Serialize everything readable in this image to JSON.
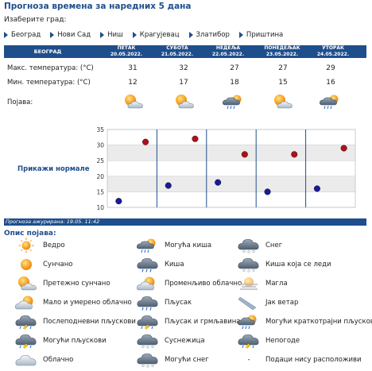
{
  "title": "Прогноза времена за наредних 5 дана",
  "choose_city": "Изаберите град:",
  "cities": [
    "Београд",
    "Нови Сад",
    "Ниш",
    "Крагујевац",
    "Златибор",
    "Приштина"
  ],
  "table": {
    "header_first": "БЕОГРАД",
    "days": [
      {
        "name": "ПЕТАК",
        "date": "20.05.2022.",
        "max": "31",
        "min": "12",
        "icon": "sunny-cloud-icon"
      },
      {
        "name": "СУБОТА",
        "date": "21.05.2022.",
        "max": "32",
        "min": "17",
        "icon": "sunny-cloud-icon"
      },
      {
        "name": "НЕДЕЉА",
        "date": "22.05.2022.",
        "max": "27",
        "min": "18",
        "icon": "sun-cloud-rain-icon"
      },
      {
        "name": "ПОНЕДЕЉАК",
        "date": "23.05.2022.",
        "max": "27",
        "min": "15",
        "icon": "sunny-cloud-icon"
      },
      {
        "name": "УТОРАК",
        "date": "24.05.2022.",
        "max": "29",
        "min": "16",
        "icon": "sun-cloud-rain-icon"
      }
    ],
    "row_max_label": "Макс. температура: (°C)",
    "row_min_label": "Мин. температура: (°C)",
    "row_phen_label": "Појава:"
  },
  "chart_link": "Прикажи нормале",
  "chart_data": {
    "type": "scatter",
    "x": [
      "20.05.2022.",
      "21.05.2022.",
      "22.05.2022.",
      "23.05.2022.",
      "24.05.2022."
    ],
    "series": [
      {
        "values": [
          31,
          32,
          27,
          27,
          29
        ],
        "color": "#b0101a"
      },
      {
        "values": [
          12,
          17,
          18,
          15,
          16
        ],
        "color": "#1a1a9c"
      }
    ],
    "ylim": [
      10,
      35
    ],
    "yticks": [
      "10",
      "15",
      "20",
      "25",
      "30",
      "35"
    ],
    "grid": true
  },
  "updated": "Прогноза ажурирана:  19.05. 11:42",
  "legend_title": "Опис појава:",
  "legend": [
    [
      "Ведро",
      "Могућа киша",
      "Снег"
    ],
    [
      "Сунчано",
      "Киша",
      "Киша која се леди"
    ],
    [
      "Претежно сунчано",
      "Променљиво облачно",
      "Магла"
    ],
    [
      "Мало и умерено облачно",
      "Пљусак",
      "Јак ветар"
    ],
    [
      "Послеподневни пљускови",
      "Пљусак и грмљавина",
      "Могући краткотрајни пљускови"
    ],
    [
      "Могући пљускови",
      "Суснежица",
      "Непогоде"
    ],
    [
      "Облачно",
      "Могући снег",
      "Подаци нису расположиви"
    ]
  ],
  "legend_icons": [
    [
      "clear-sky-icon",
      "possible-rain-icon",
      "snow-icon"
    ],
    [
      "sun-icon",
      "rain-icon",
      "freezing-rain-icon"
    ],
    [
      "mostly-sunny-icon",
      "variable-cloudy-icon",
      "fog-icon"
    ],
    [
      "partly-cloudy-icon",
      "shower-icon",
      "strong-wind-icon"
    ],
    [
      "afternoon-showers-icon",
      "thunderstorm-icon",
      "possible-brief-showers-icon"
    ],
    [
      "possible-showers-icon",
      "sleet-icon",
      "severe-weather-icon"
    ],
    [
      "cloudy-icon",
      "possible-snow-icon",
      "no-data-icon"
    ]
  ],
  "legend_dash": "-",
  "colors": {
    "accent": "#1f4e8c",
    "max_dot": "#b0101a",
    "min_dot": "#1a1a9c"
  }
}
